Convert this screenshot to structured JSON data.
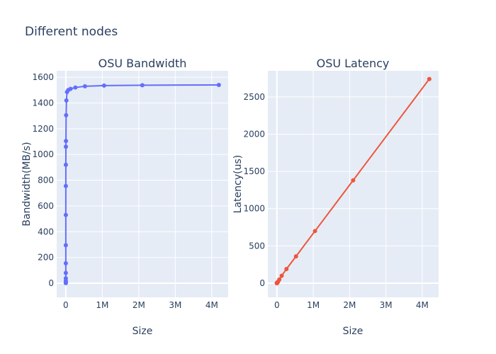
{
  "figure": {
    "title": "Different nodes"
  },
  "chart_data": [
    {
      "type": "line",
      "title": "OSU Bandwidth",
      "xlabel": "Size",
      "ylabel": "Bandwidth(MB/s)",
      "color": "#636efa",
      "xlim": [
        -250000,
        4450000
      ],
      "ylim": [
        -110,
        1650
      ],
      "xticks": [
        0,
        1000000,
        2000000,
        3000000,
        4000000
      ],
      "xtick_labels": [
        "0",
        "1M",
        "2M",
        "3M",
        "4M"
      ],
      "yticks": [
        0,
        200,
        400,
        600,
        800,
        1000,
        1200,
        1400,
        1600
      ],
      "ytick_labels": [
        "0",
        "200",
        "400",
        "600",
        "800",
        "1000",
        "1200",
        "1400",
        "1600"
      ],
      "grid": true,
      "series": [
        {
          "x": [
            1,
            2,
            4,
            8,
            16,
            32,
            64,
            128,
            256,
            512,
            1024,
            2048,
            4096,
            8192,
            16384,
            32768,
            65536,
            131072,
            262144,
            524288,
            1048576,
            2097152,
            4194304
          ],
          "y": [
            1,
            3,
            8,
            18,
            38,
            80,
            155,
            295,
            530,
            755,
            920,
            1060,
            1105,
            1305,
            1420,
            1485,
            1500,
            1510,
            1520,
            1530,
            1535,
            1538,
            1540
          ]
        }
      ]
    },
    {
      "type": "line",
      "title": "OSU Latency",
      "xlabel": "Size",
      "ylabel": "Latency(us)",
      "color": "#ef553b",
      "xlim": [
        -250000,
        4450000
      ],
      "ylim": [
        -190,
        2850
      ],
      "xticks": [
        0,
        1000000,
        2000000,
        3000000,
        4000000
      ],
      "xtick_labels": [
        "0",
        "1M",
        "2M",
        "3M",
        "4M"
      ],
      "yticks": [
        0,
        500,
        1000,
        1500,
        2000,
        2500
      ],
      "ytick_labels": [
        "0",
        "500",
        "1000",
        "1500",
        "2000",
        "2500"
      ],
      "grid": true,
      "series": [
        {
          "x": [
            0,
            1,
            2,
            4,
            8,
            16,
            32,
            64,
            128,
            256,
            512,
            1024,
            2048,
            4096,
            8192,
            16384,
            32768,
            65536,
            131072,
            262144,
            524288,
            1048576,
            2097152,
            4194304
          ],
          "y": [
            1,
            1,
            1,
            1,
            1,
            1,
            1,
            2,
            2,
            2,
            3,
            3,
            4,
            5,
            8,
            12,
            20,
            50,
            100,
            190,
            360,
            700,
            1380,
            2740
          ]
        }
      ]
    }
  ]
}
